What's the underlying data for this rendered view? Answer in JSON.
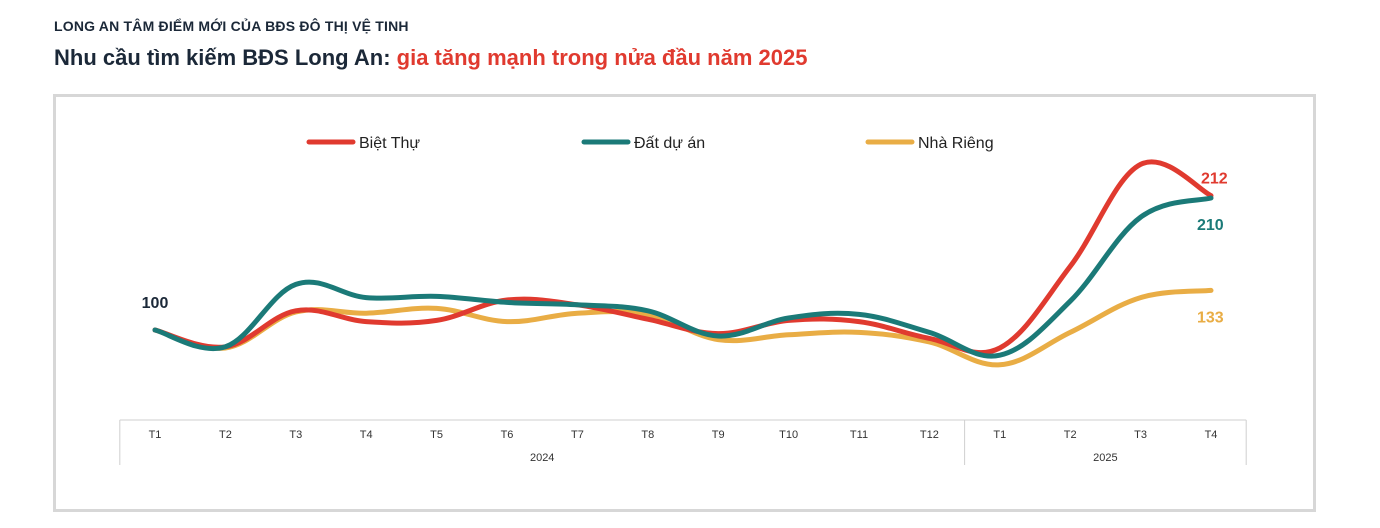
{
  "header": {
    "kicker": "LONG AN TÂM ĐIỂM MỚI CỦA BĐS ĐÔ THỊ VỆ TINH",
    "title_main": "Nhu cầu tìm kiếm BĐS Long An: ",
    "title_accent": "gia tăng mạnh trong nửa đầu năm 2025"
  },
  "colors": {
    "title": "#1b2838",
    "accent": "#e03a2f",
    "frame": "#d7d7d7",
    "axis": "#cfcfcf"
  },
  "chart_data": {
    "type": "line",
    "categories": [
      "T1",
      "T2",
      "T3",
      "T4",
      "T5",
      "T6",
      "T7",
      "T8",
      "T9",
      "T10",
      "T11",
      "T12",
      "T1",
      "T2",
      "T3",
      "T4"
    ],
    "groups": [
      {
        "label": "2024",
        "count": 12
      },
      {
        "label": "2025",
        "count": 4
      }
    ],
    "ylim": [
      50,
      250
    ],
    "legend_position": "top",
    "grid": false,
    "series": [
      {
        "name": "Biệt Thự",
        "color": "#e03a2f",
        "values": [
          100,
          86,
          116,
          107,
          108,
          125,
          121,
          109,
          97,
          108,
          107,
          93,
          85,
          153,
          238,
          212
        ],
        "end_label": "212"
      },
      {
        "name": "Đất dự án",
        "color": "#1b7a78",
        "values": [
          100,
          86,
          138,
          127,
          128,
          123,
          121,
          116,
          95,
          110,
          113,
          98,
          79,
          124,
          194,
          210
        ],
        "end_label": "210"
      },
      {
        "name": "Nhà Riêng",
        "color": "#e9ad45",
        "values": [
          100,
          85,
          115,
          114,
          118,
          107,
          114,
          113,
          92,
          96,
          98,
          90,
          71,
          98,
          127,
          133
        ],
        "end_label": "133"
      }
    ],
    "start_label": "100"
  }
}
